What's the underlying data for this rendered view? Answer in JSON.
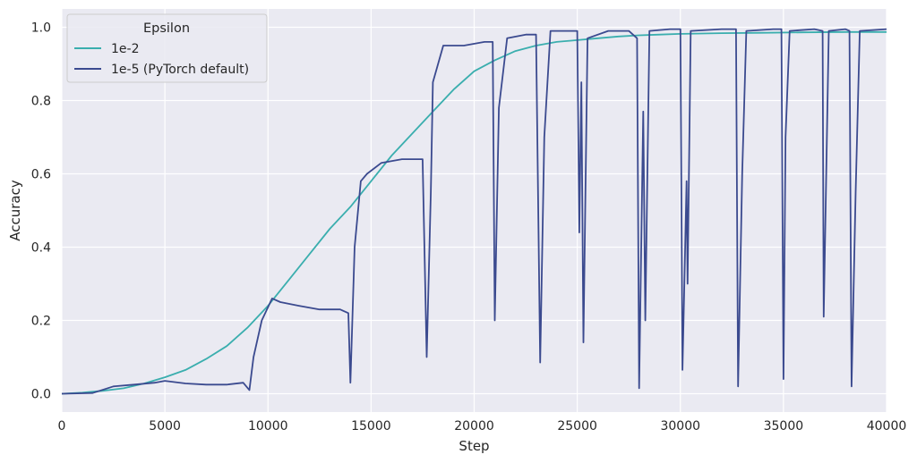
{
  "chart_data": {
    "type": "line",
    "title": "",
    "xlabel": "Step",
    "ylabel": "Accuracy",
    "xlim": [
      0,
      40000
    ],
    "ylim": [
      -0.05,
      1.05
    ],
    "xticks": [
      0,
      5000,
      10000,
      15000,
      20000,
      25000,
      30000,
      35000,
      40000
    ],
    "xtick_labels": [
      "0",
      "5000",
      "10000",
      "15000",
      "20000",
      "25000",
      "30000",
      "35000",
      "40000"
    ],
    "yticks": [
      0.0,
      0.2,
      0.4,
      0.6,
      0.8,
      1.0
    ],
    "ytick_labels": [
      "0.0",
      "0.2",
      "0.4",
      "0.6",
      "0.8",
      "1.0"
    ],
    "grid": true,
    "background": "#eaeaf2",
    "legend": {
      "title": "Epsilon",
      "placement": "top-left"
    },
    "series": [
      {
        "name": "1e-2",
        "color": "#3aaeae",
        "points": [
          [
            0,
            0.0
          ],
          [
            1000,
            0.003
          ],
          [
            2000,
            0.008
          ],
          [
            3000,
            0.015
          ],
          [
            4000,
            0.028
          ],
          [
            5000,
            0.045
          ],
          [
            6000,
            0.065
          ],
          [
            7000,
            0.095
          ],
          [
            8000,
            0.13
          ],
          [
            9000,
            0.18
          ],
          [
            10000,
            0.24
          ],
          [
            11000,
            0.31
          ],
          [
            12000,
            0.38
          ],
          [
            13000,
            0.45
          ],
          [
            14000,
            0.51
          ],
          [
            15000,
            0.58
          ],
          [
            16000,
            0.65
          ],
          [
            17000,
            0.71
          ],
          [
            18000,
            0.77
          ],
          [
            19000,
            0.83
          ],
          [
            20000,
            0.88
          ],
          [
            21000,
            0.91
          ],
          [
            22000,
            0.935
          ],
          [
            23000,
            0.95
          ],
          [
            24000,
            0.96
          ],
          [
            25000,
            0.965
          ],
          [
            26000,
            0.97
          ],
          [
            27000,
            0.975
          ],
          [
            28000,
            0.978
          ],
          [
            29000,
            0.98
          ],
          [
            30000,
            0.982
          ],
          [
            32000,
            0.984
          ],
          [
            34000,
            0.985
          ],
          [
            36000,
            0.986
          ],
          [
            38000,
            0.987
          ],
          [
            40000,
            0.987
          ]
        ]
      },
      {
        "name": "1e-5 (PyTorch default)",
        "color": "#3b4a8f",
        "points": [
          [
            0,
            0.0
          ],
          [
            1500,
            0.002
          ],
          [
            2500,
            0.02
          ],
          [
            3500,
            0.025
          ],
          [
            4500,
            0.03
          ],
          [
            5000,
            0.035
          ],
          [
            6000,
            0.028
          ],
          [
            7000,
            0.025
          ],
          [
            8000,
            0.025
          ],
          [
            8800,
            0.03
          ],
          [
            9100,
            0.01
          ],
          [
            9300,
            0.1
          ],
          [
            9700,
            0.2
          ],
          [
            10200,
            0.26
          ],
          [
            10600,
            0.25
          ],
          [
            11500,
            0.24
          ],
          [
            12500,
            0.23
          ],
          [
            13500,
            0.23
          ],
          [
            13900,
            0.22
          ],
          [
            14000,
            0.03
          ],
          [
            14200,
            0.4
          ],
          [
            14500,
            0.58
          ],
          [
            14800,
            0.6
          ],
          [
            15500,
            0.63
          ],
          [
            16500,
            0.64
          ],
          [
            17500,
            0.64
          ],
          [
            17700,
            0.1
          ],
          [
            17900,
            0.55
          ],
          [
            18000,
            0.85
          ],
          [
            18500,
            0.95
          ],
          [
            19500,
            0.95
          ],
          [
            20500,
            0.96
          ],
          [
            20900,
            0.96
          ],
          [
            21000,
            0.2
          ],
          [
            21200,
            0.78
          ],
          [
            21600,
            0.97
          ],
          [
            22500,
            0.98
          ],
          [
            23000,
            0.98
          ],
          [
            23200,
            0.085
          ],
          [
            23400,
            0.7
          ],
          [
            23700,
            0.99
          ],
          [
            24500,
            0.99
          ],
          [
            25000,
            0.99
          ],
          [
            25100,
            0.44
          ],
          [
            25200,
            0.85
          ],
          [
            25300,
            0.14
          ],
          [
            25500,
            0.97
          ],
          [
            26500,
            0.99
          ],
          [
            27500,
            0.99
          ],
          [
            27900,
            0.97
          ],
          [
            28000,
            0.015
          ],
          [
            28200,
            0.77
          ],
          [
            28300,
            0.2
          ],
          [
            28500,
            0.99
          ],
          [
            29500,
            0.995
          ],
          [
            30000,
            0.995
          ],
          [
            30100,
            0.065
          ],
          [
            30300,
            0.58
          ],
          [
            30350,
            0.3
          ],
          [
            30500,
            0.99
          ],
          [
            32000,
            0.995
          ],
          [
            32700,
            0.995
          ],
          [
            32800,
            0.02
          ],
          [
            33000,
            0.6
          ],
          [
            33200,
            0.99
          ],
          [
            34500,
            0.995
          ],
          [
            34900,
            0.995
          ],
          [
            35000,
            0.04
          ],
          [
            35100,
            0.7
          ],
          [
            35300,
            0.99
          ],
          [
            36500,
            0.995
          ],
          [
            36900,
            0.99
          ],
          [
            36950,
            0.21
          ],
          [
            37200,
            0.99
          ],
          [
            38000,
            0.995
          ],
          [
            38200,
            0.99
          ],
          [
            38300,
            0.02
          ],
          [
            38500,
            0.55
          ],
          [
            38700,
            0.99
          ],
          [
            40000,
            0.995
          ]
        ]
      }
    ]
  }
}
